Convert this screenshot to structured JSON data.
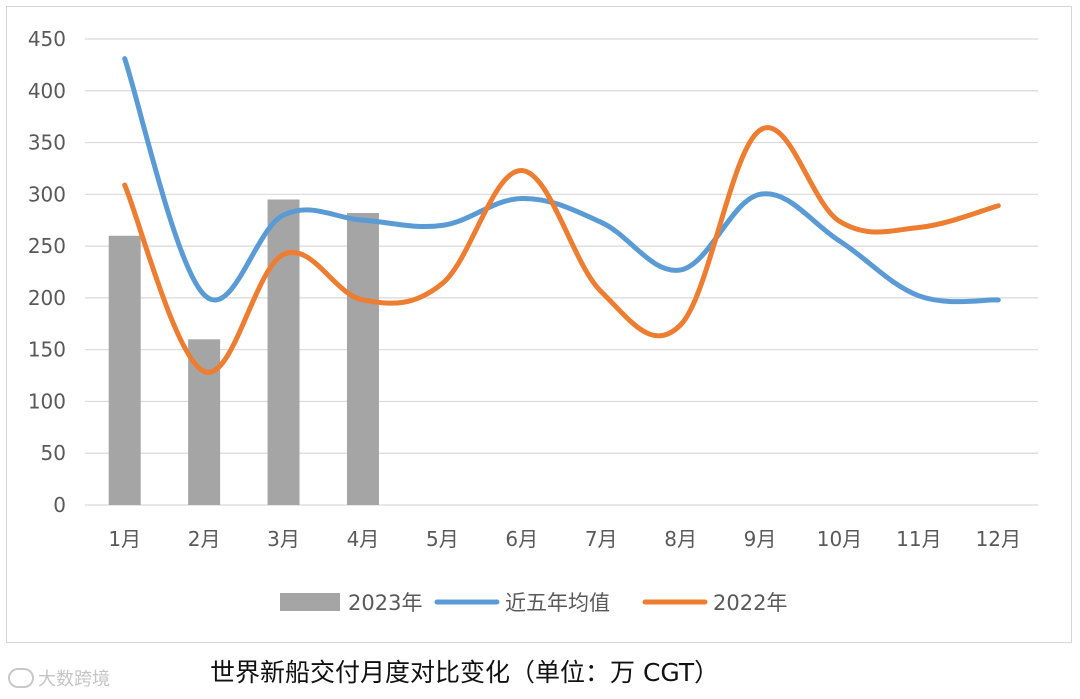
{
  "caption": "世界新船交付月度对比变化（单位：万 CGT）",
  "watermark": {
    "text": "大数跨境",
    "logo": "watermark-logo-icon"
  },
  "chart_data": {
    "type": "bar+line",
    "title": "",
    "xlabel": "",
    "ylabel": "",
    "categories": [
      "1月",
      "2月",
      "3月",
      "4月",
      "5月",
      "6月",
      "7月",
      "8月",
      "9月",
      "10月",
      "11月",
      "12月"
    ],
    "ylim": [
      0,
      450
    ],
    "yticks": [
      0,
      50,
      100,
      150,
      200,
      250,
      300,
      350,
      400,
      450
    ],
    "grid": true,
    "legend_position": "bottom",
    "series": [
      {
        "name": "2023年",
        "type": "bar",
        "color": "#a5a5a5",
        "values": [
          260,
          160,
          295,
          282,
          null,
          null,
          null,
          null,
          null,
          null,
          null,
          null
        ]
      },
      {
        "name": "近五年均值",
        "type": "line",
        "color": "#5b9bd5",
        "values": [
          431,
          203,
          280,
          275,
          270,
          296,
          273,
          227,
          300,
          255,
          202,
          198
        ]
      },
      {
        "name": "2022年",
        "type": "line",
        "color": "#ed7d31",
        "values": [
          309,
          129,
          242,
          198,
          214,
          323,
          206,
          174,
          362,
          274,
          268,
          289
        ]
      }
    ]
  }
}
